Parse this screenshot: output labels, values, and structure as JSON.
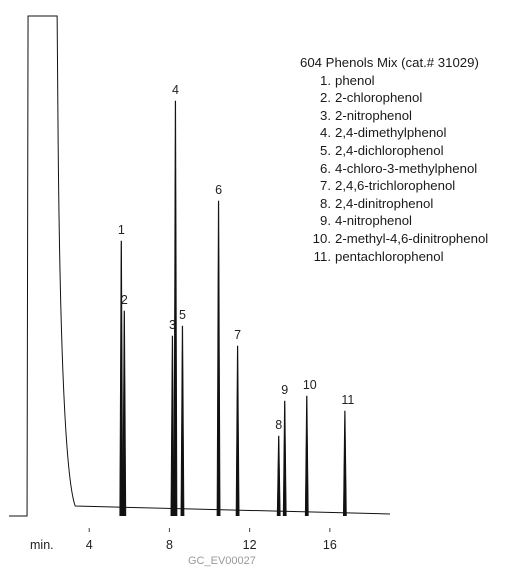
{
  "chart_data": {
    "type": "line",
    "title": "604 Phenols Mix (cat.# 31029)",
    "x_unit_label": "min.",
    "x_ticks": [
      4,
      8,
      12,
      16
    ],
    "xlim": [
      0.0,
      19.0
    ],
    "peaks": [
      {
        "label": "1",
        "compound": "phenol",
        "rt": 5.6,
        "height": 0.55
      },
      {
        "label": "2",
        "compound": "2-chlorophenol",
        "rt": 5.75,
        "height": 0.41
      },
      {
        "label": "3",
        "compound": "2-nitrophenol",
        "rt": 8.15,
        "height": 0.36
      },
      {
        "label": "4",
        "compound": "2,4-dimethylphenol",
        "rt": 8.3,
        "height": 0.83
      },
      {
        "label": "5",
        "compound": "2,4-dichlorophenol",
        "rt": 8.65,
        "height": 0.38
      },
      {
        "label": "6",
        "compound": "4-chloro-3-methylphenol",
        "rt": 10.45,
        "height": 0.63
      },
      {
        "label": "7",
        "compound": "2,4,6-trichlorophenol",
        "rt": 11.4,
        "height": 0.34
      },
      {
        "label": "8",
        "compound": "2,4-dinitrophenol",
        "rt": 13.45,
        "height": 0.16
      },
      {
        "label": "9",
        "compound": "4-nitrophenol",
        "rt": 13.75,
        "height": 0.23
      },
      {
        "label": "10",
        "compound": "2-methyl-4,6-dinitrophenol",
        "rt": 14.85,
        "height": 0.24
      },
      {
        "label": "11",
        "compound": "pentachlorophenol",
        "rt": 16.75,
        "height": 0.21
      }
    ]
  },
  "footer": {
    "code": "GC_EV00027"
  }
}
